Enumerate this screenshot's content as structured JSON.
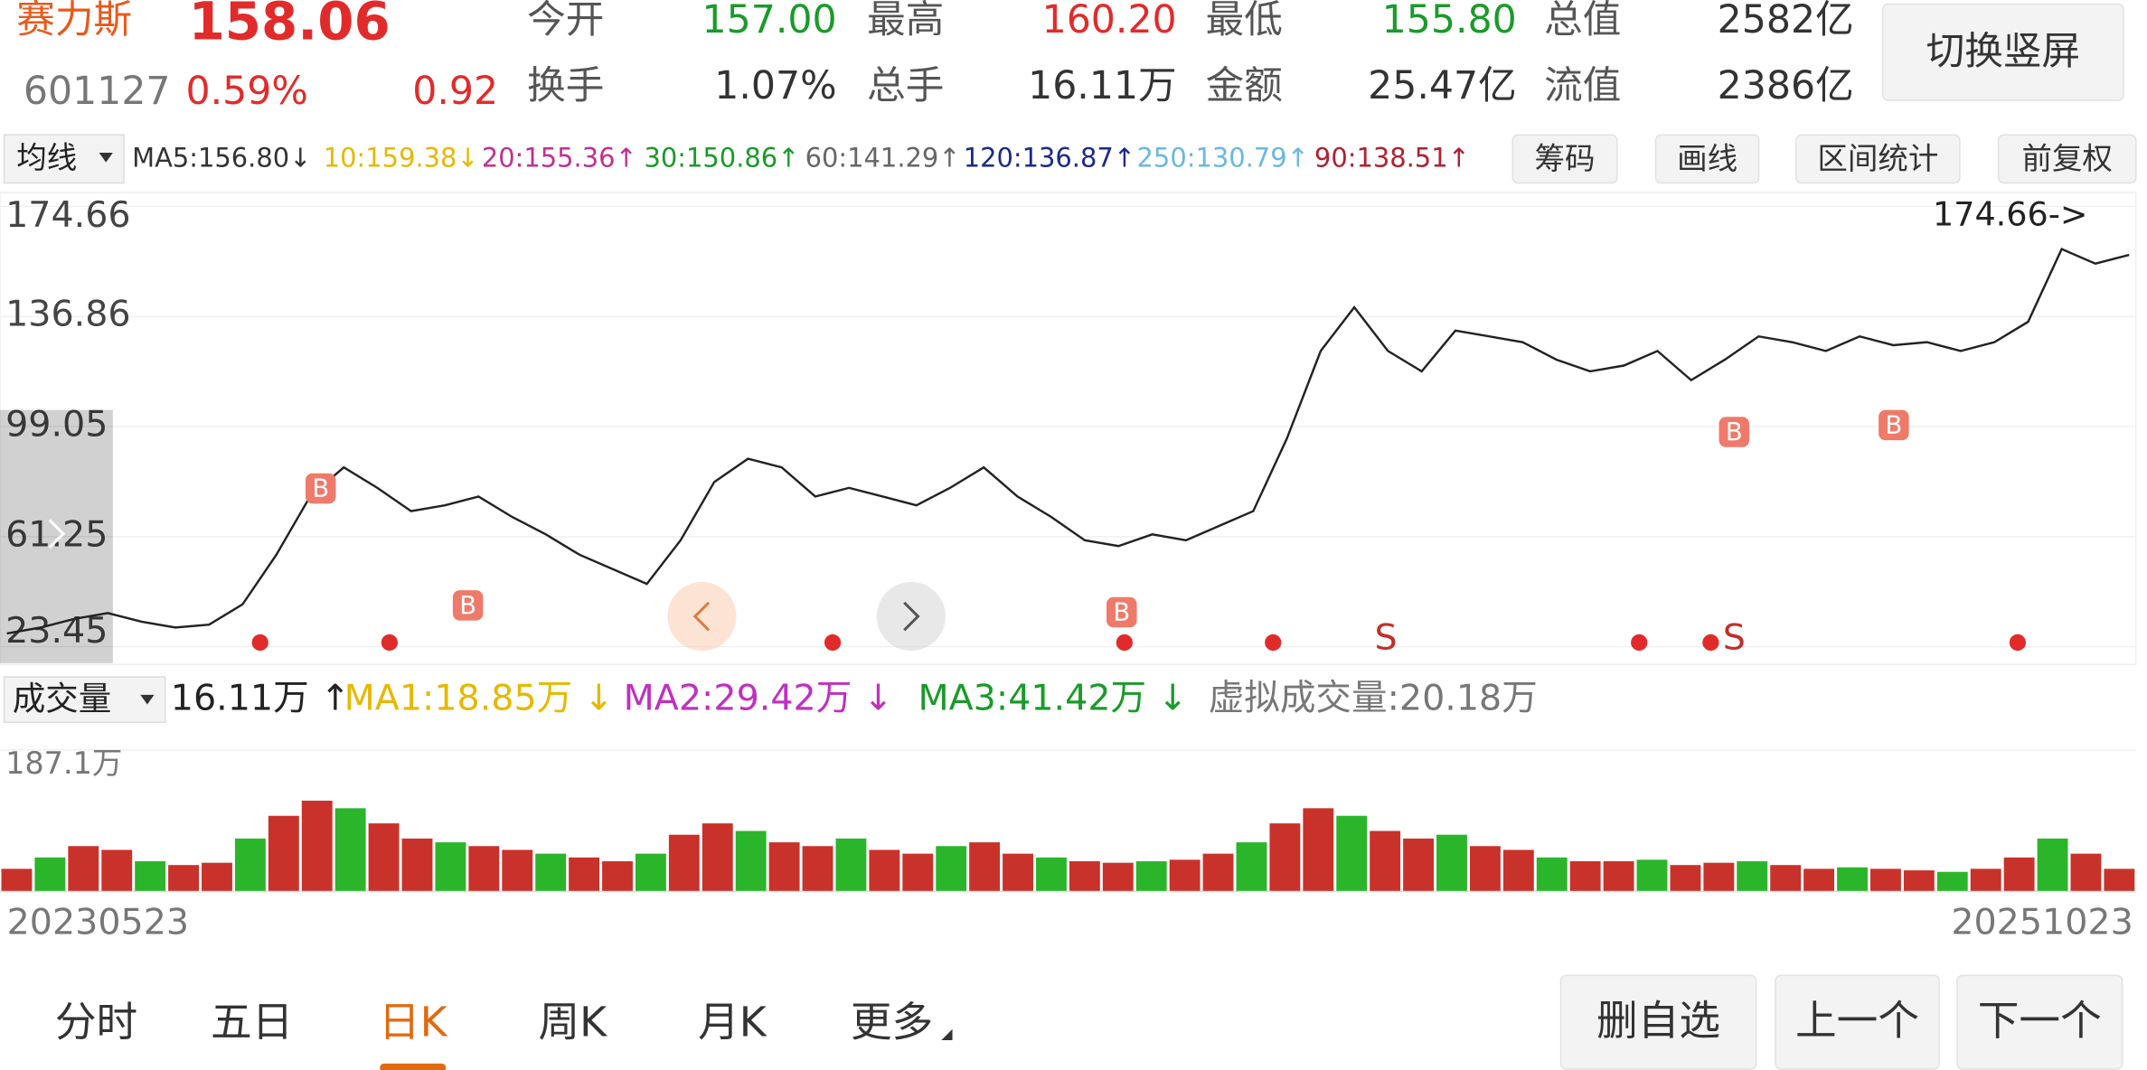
{
  "header": {
    "name": "赛力斯",
    "price": "158.06",
    "code": "601127",
    "change_pct": "0.59%",
    "change": "0.92",
    "stats": [
      {
        "label": "今开",
        "value": "157.00"
      },
      {
        "label": "最高",
        "value": "160.20"
      },
      {
        "label": "最低",
        "value": "155.80"
      },
      {
        "label": "总值",
        "value": "2582亿"
      },
      {
        "label": "换手",
        "value": "1.07%"
      },
      {
        "label": "总手",
        "value": "16.11万"
      },
      {
        "label": "金额",
        "value": "25.47亿"
      },
      {
        "label": "流值",
        "value": "2386亿"
      }
    ],
    "orientation_button": "切换竖屏"
  },
  "ma_bar": {
    "selector": "均线",
    "items": [
      "MA5:156.80↓",
      "10:159.38↓",
      "20:155.36↑",
      "30:150.86↑",
      "60:141.29↑",
      "120:136.87↑",
      "250:130.79↑",
      "90:138.51↑"
    ],
    "buttons": [
      "筹码",
      "画线",
      "区间统计",
      "前复权"
    ]
  },
  "kline": {
    "ylim": [
      23.45,
      174.66
    ],
    "yticks": [
      174.66,
      136.86,
      99.05,
      61.25,
      23.45
    ],
    "max_label": "174.66->",
    "close": [
      28,
      30,
      33,
      35,
      32,
      30,
      31,
      38,
      55,
      75,
      85,
      78,
      70,
      72,
      75,
      68,
      62,
      55,
      50,
      45,
      60,
      80,
      88,
      85,
      75,
      78,
      75,
      72,
      78,
      85,
      75,
      68,
      60,
      58,
      62,
      60,
      65,
      70,
      95,
      125,
      140,
      125,
      118,
      132,
      130,
      128,
      122,
      118,
      120,
      125,
      115,
      122,
      130,
      128,
      125,
      130,
      127,
      128,
      125,
      128,
      135,
      160,
      155,
      158
    ],
    "markers": [
      "B",
      "B",
      "B",
      "B",
      "B",
      "S",
      "S"
    ]
  },
  "volume_bar": {
    "selector": "成交量",
    "items": [
      "16.11万 ↑",
      "MA1:18.85万 ↓",
      "MA2:29.42万 ↓",
      "MA3:41.42万 ↓",
      "虚拟成交量:20.18万"
    ]
  },
  "volume": {
    "ylim": [
      0,
      187.1
    ],
    "yticks": [
      {
        "value": 187.1,
        "label": "187.1万"
      }
    ],
    "values": [
      30,
      45,
      60,
      55,
      40,
      35,
      38,
      70,
      100,
      120,
      110,
      90,
      70,
      65,
      60,
      55,
      50,
      45,
      40,
      50,
      75,
      90,
      80,
      65,
      60,
      70,
      55,
      50,
      60,
      65,
      50,
      45,
      40,
      38,
      40,
      42,
      50,
      65,
      90,
      110,
      100,
      80,
      70,
      75,
      60,
      55,
      45,
      40,
      40,
      42,
      35,
      38,
      40,
      35,
      30,
      32,
      30,
      28,
      26,
      30,
      45,
      70,
      50,
      30
    ]
  },
  "dates": [
    "20230523",
    "20251023"
  ],
  "tabs": [
    "分时",
    "五日",
    "日K",
    "周K",
    "月K",
    "更多"
  ],
  "footer_buttons": [
    "删自选",
    "上一个",
    "下一个"
  ]
}
